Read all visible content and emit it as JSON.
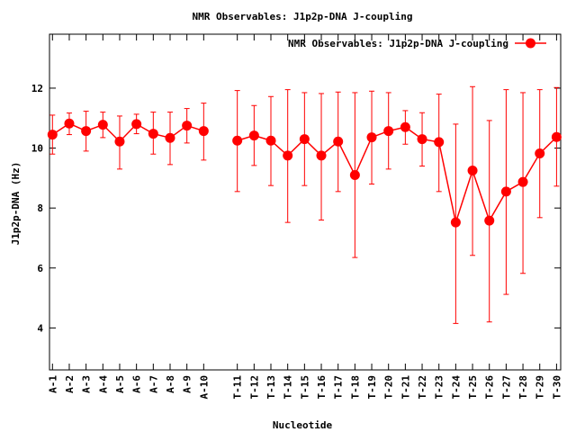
{
  "chart_data": {
    "type": "line",
    "title": "NMR Observables: J1p2p-DNA J-coupling",
    "xlabel": "Nucleotide",
    "ylabel": "J1p2p-DNA (Hz)",
    "ylim": [
      2.6,
      13.8
    ],
    "yticks": [
      4,
      6,
      8,
      10,
      12
    ],
    "grid": false,
    "legend_position": "top-right",
    "series": [
      {
        "name": "NMR Observables: J1p2p-DNA J-coupling",
        "color": "#ff0000",
        "segments": [
          {
            "categories": [
              "A-1",
              "A-2",
              "A-3",
              "A-4",
              "A-5",
              "A-6",
              "A-7",
              "A-8",
              "A-9",
              "A-10"
            ],
            "values": [
              10.45,
              10.82,
              10.57,
              10.78,
              10.22,
              10.8,
              10.48,
              10.34,
              10.75,
              10.57
            ],
            "err_low": [
              9.8,
              10.45,
              9.9,
              10.35,
              9.3,
              10.48,
              9.8,
              9.45,
              10.17,
              9.6
            ],
            "err_high": [
              11.1,
              11.17,
              11.23,
              11.2,
              11.07,
              11.13,
              11.2,
              11.2,
              11.32,
              11.5
            ]
          },
          {
            "categories": [
              "T-11",
              "T-12",
              "T-13",
              "T-14",
              "T-15",
              "T-16",
              "T-17",
              "T-18",
              "T-19",
              "T-20",
              "T-21",
              "T-22",
              "T-23",
              "T-24",
              "T-25",
              "T-26",
              "T-27",
              "T-28",
              "T-29",
              "T-30"
            ],
            "values": [
              10.25,
              10.42,
              10.25,
              9.75,
              10.3,
              9.75,
              10.22,
              9.1,
              10.36,
              10.57,
              10.7,
              10.3,
              10.2,
              7.52,
              9.25,
              7.58,
              8.55,
              8.87,
              9.82,
              10.37
            ],
            "err_low": [
              8.55,
              9.42,
              8.75,
              7.52,
              8.75,
              7.6,
              8.55,
              6.35,
              8.8,
              9.3,
              10.13,
              9.4,
              8.55,
              4.15,
              6.42,
              4.2,
              5.12,
              5.82,
              7.68,
              8.73
            ],
            "err_high": [
              11.92,
              11.42,
              11.72,
              11.95,
              11.85,
              11.82,
              11.87,
              11.85,
              11.9,
              11.85,
              11.25,
              11.18,
              11.8,
              10.8,
              12.05,
              10.92,
              11.95,
              11.85,
              11.95,
              12.02
            ]
          }
        ]
      }
    ]
  }
}
